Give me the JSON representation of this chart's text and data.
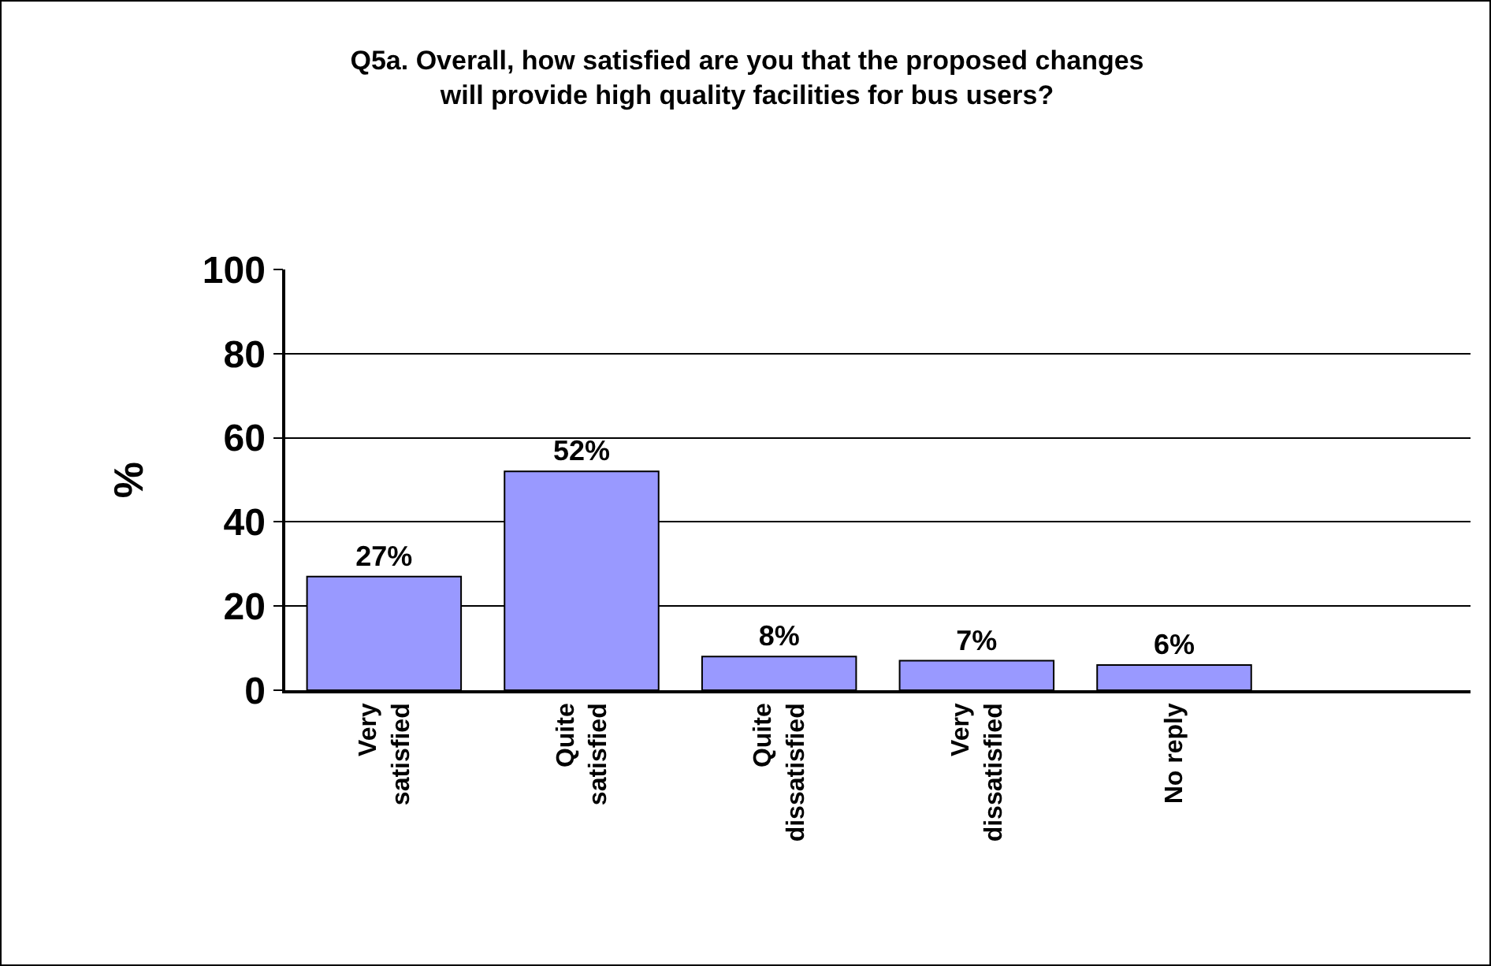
{
  "chart_data": {
    "type": "bar",
    "title": "Q5a. Overall, how satisfied are you that the proposed changes\nwill provide high quality facilities for bus users?",
    "ylabel": "%",
    "categories": [
      "Very\nsatisfied",
      "Quite\nsatisfied",
      "Quite\ndissatisfied",
      "Very\ndissatisfied",
      "No reply",
      null
    ],
    "values": [
      27,
      52,
      8,
      7,
      6,
      null
    ],
    "value_labels": [
      "27%",
      "52%",
      "8%",
      "7%",
      "6%",
      null
    ],
    "color": "#9999ff",
    "ylim": [
      0,
      100
    ],
    "yticks": [
      0,
      20,
      40,
      60,
      80,
      100
    ],
    "grid": "y",
    "legend": false
  }
}
